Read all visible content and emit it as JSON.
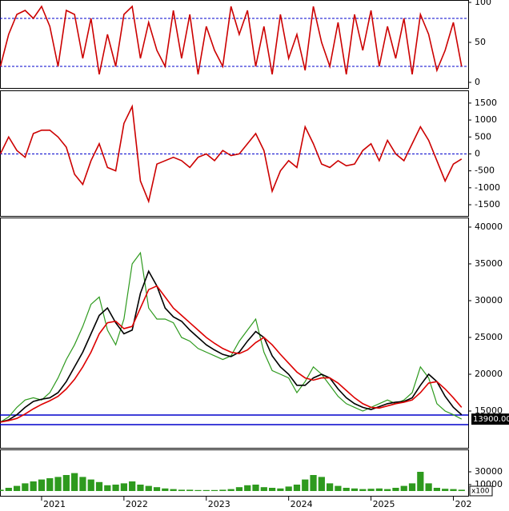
{
  "chart_data": [
    {
      "type": "line",
      "xlim": [
        2020.495,
        2026.18
      ],
      "ylim": [
        -7,
        103
      ],
      "yticks": [
        100,
        50,
        0
      ],
      "hlines": [
        80,
        20
      ],
      "hline_color": "#0000cc",
      "hline_dash": true,
      "x": [
        2020.5,
        2020.6,
        2020.7,
        2020.8,
        2020.9,
        2021.0,
        2021.1,
        2021.2,
        2021.3,
        2021.4,
        2021.5,
        2021.6,
        2021.7,
        2021.8,
        2021.9,
        2022.0,
        2022.1,
        2022.2,
        2022.3,
        2022.4,
        2022.5,
        2022.6,
        2022.7,
        2022.8,
        2022.9,
        2023.0,
        2023.1,
        2023.2,
        2023.3,
        2023.4,
        2023.5,
        2023.6,
        2023.7,
        2023.8,
        2023.9,
        2024.0,
        2024.1,
        2024.2,
        2024.3,
        2024.4,
        2024.5,
        2024.6,
        2024.7,
        2024.8,
        2024.9,
        2025.0,
        2025.1,
        2025.2,
        2025.3,
        2025.4,
        2025.5,
        2025.6,
        2025.7,
        2025.8,
        2025.9,
        2026.0,
        2026.1
      ],
      "series": [
        {
          "color": "#cc0000",
          "values": [
            20,
            60,
            85,
            90,
            80,
            95,
            70,
            20,
            90,
            85,
            30,
            80,
            10,
            60,
            20,
            85,
            95,
            30,
            75,
            40,
            20,
            90,
            30,
            85,
            10,
            70,
            40,
            20,
            95,
            60,
            90,
            20,
            70,
            10,
            85,
            30,
            60,
            15,
            95,
            50,
            20,
            75,
            10,
            85,
            40,
            90,
            20,
            70,
            30,
            80,
            10,
            85,
            60,
            15,
            40,
            75,
            20
          ]
        }
      ]
    },
    {
      "type": "line",
      "xlim": [
        2020.495,
        2026.18
      ],
      "ylim": [
        -1830,
        1875
      ],
      "yticks": [
        1500,
        1000,
        500,
        0,
        -500,
        -1000,
        -1500
      ],
      "hlines": [
        0
      ],
      "hline_color": "#0000cc",
      "hline_dash": true,
      "x": [
        2020.5,
        2020.6,
        2020.7,
        2020.8,
        2020.9,
        2021.0,
        2021.1,
        2021.2,
        2021.3,
        2021.4,
        2021.5,
        2021.6,
        2021.7,
        2021.8,
        2021.9,
        2022.0,
        2022.1,
        2022.2,
        2022.3,
        2022.4,
        2022.5,
        2022.6,
        2022.7,
        2022.8,
        2022.9,
        2023.0,
        2023.1,
        2023.2,
        2023.3,
        2023.4,
        2023.5,
        2023.6,
        2023.7,
        2023.8,
        2023.9,
        2024.0,
        2024.1,
        2024.2,
        2024.3,
        2024.4,
        2024.5,
        2024.6,
        2024.7,
        2024.8,
        2024.9,
        2025.0,
        2025.1,
        2025.2,
        2025.3,
        2025.4,
        2025.5,
        2025.6,
        2025.7,
        2025.8,
        2025.9,
        2026.0,
        2026.1
      ],
      "series": [
        {
          "color": "#cc0000",
          "values": [
            0,
            500,
            100,
            -100,
            600,
            700,
            700,
            500,
            200,
            -600,
            -900,
            -200,
            300,
            -400,
            -500,
            900,
            1400,
            -800,
            -1400,
            -300,
            -200,
            -100,
            -200,
            -400,
            -100,
            0,
            -200,
            100,
            -50,
            0,
            300,
            600,
            100,
            -1100,
            -500,
            -200,
            -400,
            800,
            300,
            -300,
            -400,
            -200,
            -350,
            -300,
            100,
            300,
            -200,
            400,
            0,
            -200,
            300,
            800,
            400,
            -200,
            -800,
            -300,
            -150
          ]
        }
      ]
    },
    {
      "type": "line",
      "xlim": [
        2020.495,
        2026.18
      ],
      "ylim": [
        10000,
        41300
      ],
      "yticks": [
        40000,
        35000,
        30000,
        25000,
        20000,
        15000
      ],
      "hlines": [
        14450,
        13150
      ],
      "hline_color": "#0000cc",
      "hline_dash": false,
      "last": {
        "value": 13900,
        "label": "13900.00"
      },
      "x": [
        2020.5,
        2020.6,
        2020.7,
        2020.8,
        2020.9,
        2021.0,
        2021.1,
        2021.2,
        2021.3,
        2021.4,
        2021.5,
        2021.6,
        2021.7,
        2021.8,
        2021.9,
        2022.0,
        2022.1,
        2022.2,
        2022.3,
        2022.4,
        2022.5,
        2022.6,
        2022.7,
        2022.8,
        2022.9,
        2023.0,
        2023.1,
        2023.2,
        2023.3,
        2023.4,
        2023.5,
        2023.6,
        2023.7,
        2023.8,
        2023.9,
        2024.0,
        2024.1,
        2024.2,
        2024.3,
        2024.4,
        2024.5,
        2024.6,
        2024.7,
        2024.8,
        2024.9,
        2025.0,
        2025.1,
        2025.2,
        2025.3,
        2025.4,
        2025.5,
        2025.6,
        2025.7,
        2025.8,
        2025.9,
        2026.0,
        2026.1
      ],
      "series": [
        {
          "color": "#2e9a1e",
          "values": [
            13500,
            14200,
            15500,
            16500,
            16800,
            16500,
            17500,
            19500,
            22000,
            24000,
            26500,
            29500,
            30500,
            26000,
            24000,
            27500,
            35000,
            36500,
            29000,
            27500,
            27500,
            27000,
            25000,
            24500,
            23500,
            23000,
            22500,
            22000,
            22500,
            24500,
            26000,
            27500,
            23000,
            20500,
            20000,
            19500,
            17500,
            19000,
            21000,
            20000,
            18500,
            17000,
            16000,
            15500,
            15000,
            15500,
            16000,
            16500,
            16000,
            16500,
            17500,
            21000,
            19500,
            16000,
            15000,
            14500,
            13900
          ]
        },
        {
          "color": "#000000",
          "values": [
            13500,
            13800,
            14500,
            15500,
            16300,
            16600,
            16800,
            17500,
            19000,
            21000,
            23000,
            25500,
            28000,
            29000,
            27000,
            25500,
            26000,
            31000,
            34000,
            32000,
            29000,
            27800,
            27200,
            26000,
            25000,
            24000,
            23300,
            22700,
            22400,
            23000,
            24500,
            25800,
            25000,
            22500,
            21000,
            20000,
            18500,
            18500,
            19500,
            20000,
            19500,
            18000,
            16800,
            16000,
            15500,
            15200,
            15600,
            16000,
            16200,
            16300,
            16800,
            18500,
            20000,
            19000,
            17000,
            15500,
            14500
          ]
        },
        {
          "color": "#dd0000",
          "values": [
            13500,
            13700,
            14000,
            14600,
            15300,
            15900,
            16400,
            17000,
            18000,
            19300,
            21000,
            23000,
            25500,
            27000,
            27200,
            26200,
            26500,
            29000,
            31500,
            32000,
            30500,
            29000,
            28000,
            27000,
            26000,
            25000,
            24200,
            23500,
            23000,
            22800,
            23300,
            24300,
            25000,
            24000,
            22700,
            21500,
            20300,
            19500,
            19200,
            19500,
            19500,
            18800,
            17800,
            16800,
            16000,
            15500,
            15400,
            15700,
            16000,
            16200,
            16500,
            17500,
            18800,
            19000,
            18000,
            16800,
            15500
          ]
        }
      ]
    },
    {
      "type": "bar",
      "xlim": [
        2020.495,
        2026.18
      ],
      "ylim": [
        -7500,
        65000
      ],
      "yticks": [
        30000,
        10000
      ],
      "unit_label": "x100",
      "xticks": [
        2021,
        2022,
        2023,
        2024,
        2025,
        {
          "value": 2026,
          "label": "202"
        }
      ],
      "x": [
        2020.5,
        2020.6,
        2020.7,
        2020.8,
        2020.9,
        2021.0,
        2021.1,
        2021.2,
        2021.3,
        2021.4,
        2021.5,
        2021.6,
        2021.7,
        2021.8,
        2021.9,
        2022.0,
        2022.1,
        2022.2,
        2022.3,
        2022.4,
        2022.5,
        2022.6,
        2022.7,
        2022.8,
        2022.9,
        2023.0,
        2023.1,
        2023.2,
        2023.3,
        2023.4,
        2023.5,
        2023.6,
        2023.7,
        2023.8,
        2023.9,
        2024.0,
        2024.1,
        2024.2,
        2024.3,
        2024.4,
        2024.5,
        2024.6,
        2024.7,
        2024.8,
        2024.9,
        2025.0,
        2025.1,
        2025.2,
        2025.3,
        2025.4,
        2025.5,
        2025.6,
        2025.7,
        2025.8,
        2025.9,
        2026.0,
        2026.1
      ],
      "series": [
        {
          "color": "#2e9a1e",
          "values": [
            2000,
            5000,
            8000,
            12000,
            15000,
            18000,
            20000,
            22000,
            25000,
            28000,
            22000,
            18000,
            14000,
            9000,
            10000,
            12000,
            15000,
            10000,
            8000,
            6000,
            4000,
            3000,
            2000,
            2000,
            1500,
            1500,
            1500,
            2000,
            3000,
            6000,
            9000,
            10000,
            6000,
            5000,
            4000,
            7000,
            10000,
            18000,
            25000,
            22000,
            12000,
            8000,
            5000,
            4000,
            3000,
            3500,
            4000,
            3000,
            5000,
            8000,
            12000,
            30000,
            12000,
            5000,
            3500,
            3000,
            2000
          ]
        }
      ]
    }
  ]
}
